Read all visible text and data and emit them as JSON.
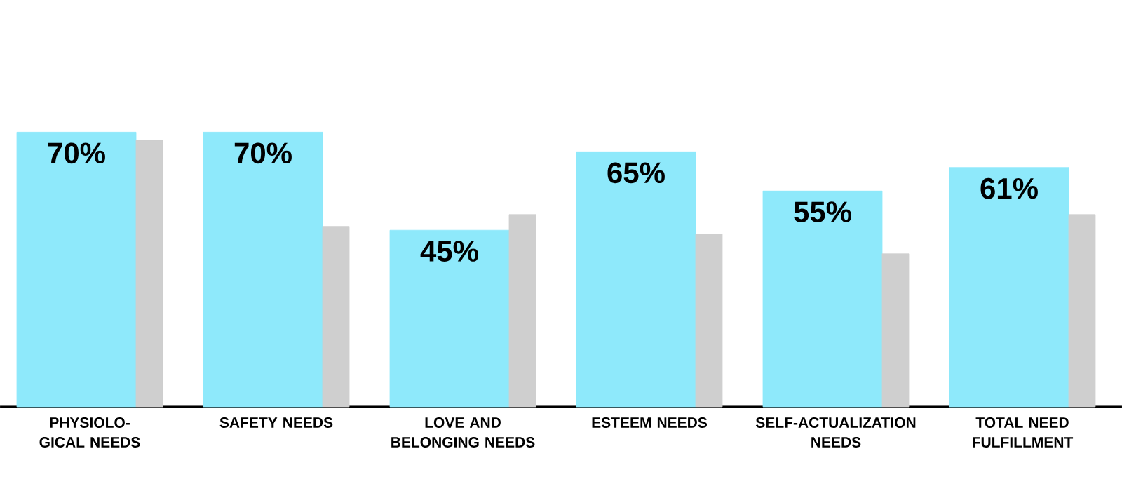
{
  "chart_data": {
    "type": "bar",
    "categories": [
      "PHYSIOLO-GICAL NEEDS",
      "SAFETY NEEDS",
      "LOVE AND BELONGING NEEDS",
      "ESTEEM NEEDS",
      "SELF-ACTUALIZATION NEEDS",
      "TOTAL NEED FULFILLMENT"
    ],
    "series": [
      {
        "color": "#8ee9fb",
        "values": [
          70,
          70,
          45,
          65,
          55,
          61
        ],
        "value_labels": [
          "70%",
          "70%",
          "45%",
          "65%",
          "55%",
          "61%"
        ]
      },
      {
        "color": "#cfcfcf",
        "values": [
          68,
          46,
          49,
          44,
          39,
          49
        ]
      }
    ],
    "tick_labels": "x"
  }
}
